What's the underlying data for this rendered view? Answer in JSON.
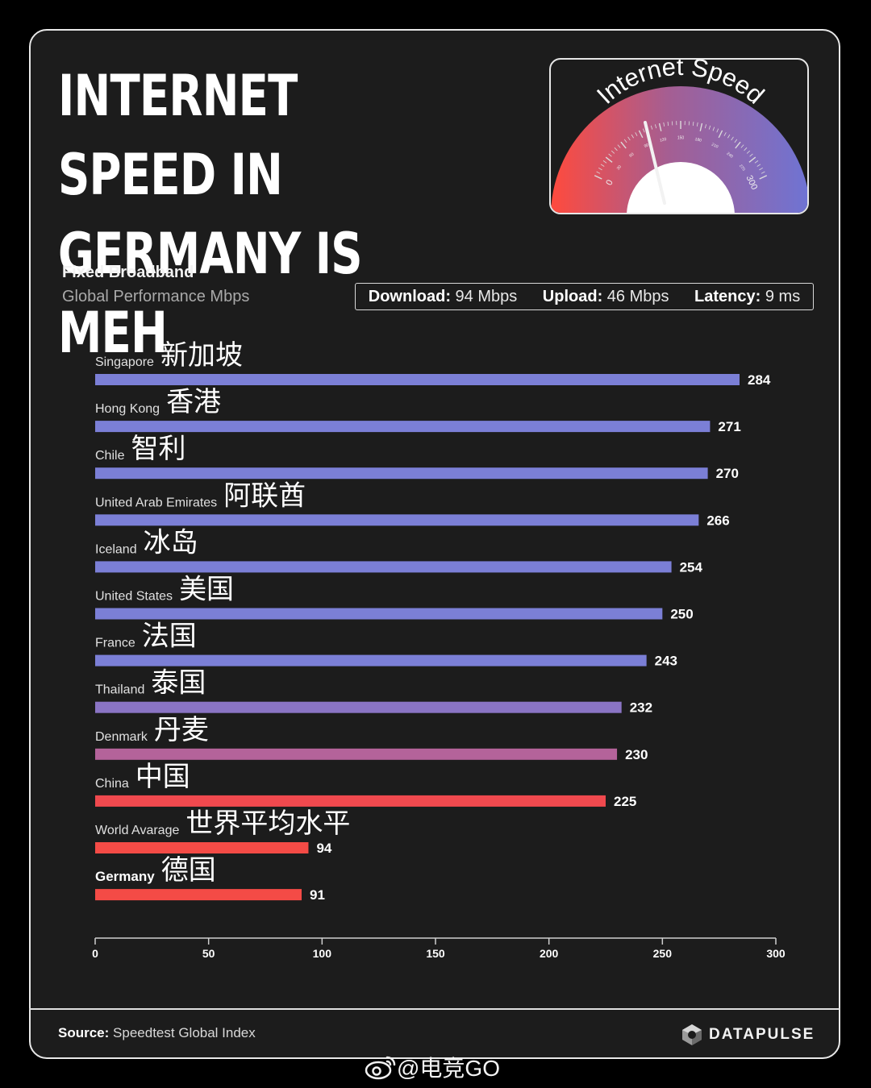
{
  "title": "INTERNET SPEED IN GERMANY IS MEH",
  "gauge": {
    "label": "Internet Speed",
    "scale_labels": [
      "0",
      "30",
      "60",
      "90",
      "120",
      "150",
      "180",
      "210",
      "240",
      "270",
      "300"
    ],
    "needle_value": 94
  },
  "subtitle": {
    "primary": "Fixed Broadband",
    "secondary": "Global Performance Mbps"
  },
  "stats": [
    {
      "label": "Download:",
      "value": "94 Mbps"
    },
    {
      "label": "Upload:",
      "value": "46 Mbps"
    },
    {
      "label": "Latency:",
      "value": "9 ms"
    }
  ],
  "chart_data": {
    "type": "bar",
    "orientation": "horizontal",
    "categories": [
      "Singapore",
      "Hong Kong",
      "Chile",
      "United Arab Emirates",
      "Iceland",
      "United States",
      "France",
      "Thailand",
      "Denmark",
      "China",
      "World Avarage",
      "Germany"
    ],
    "annotations": [
      "新加坡",
      "香港",
      "智利",
      "阿联酋",
      "冰岛",
      "美国",
      "法国",
      "泰国",
      "丹麦",
      "中国",
      "世界平均水平",
      "德国"
    ],
    "values": [
      284,
      271,
      270,
      266,
      254,
      250,
      243,
      232,
      230,
      225,
      94,
      91
    ],
    "bar_colors": [
      "#7b7fd6",
      "#7b7fd6",
      "#7b7fd6",
      "#7b7fd6",
      "#7b7fd6",
      "#7b7fd6",
      "#7b7fd6",
      "#8a74c4",
      "#b4639a",
      "#f0494e",
      "#f44b46",
      "#f44b46"
    ],
    "highlight": "Germany",
    "xlim": [
      0,
      300
    ],
    "xticks": [
      0,
      50,
      100,
      150,
      200,
      250,
      300
    ],
    "grid": false
  },
  "footer": {
    "source_label": "Source:",
    "source_text": "Speedtest Global Index",
    "brand": "DATAPULSE"
  },
  "watermark": "@电竞GO"
}
